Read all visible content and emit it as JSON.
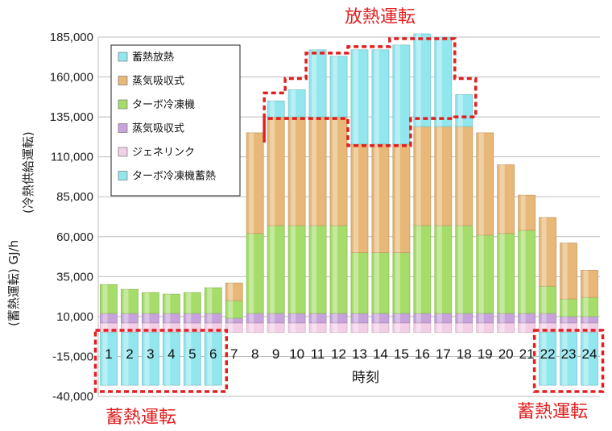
{
  "chart_data": {
    "type": "bar",
    "stacked": true,
    "title": "",
    "xlabel": "時刻",
    "ylabel_left": "(蓄熱運転) GJ/h",
    "ylabel_right": "(冷熱供給運転)",
    "ylim": [
      -40000,
      185000
    ],
    "yticks": [
      "185,000",
      "160,000",
      "135,000",
      "110,000",
      "85,000",
      "60,000",
      "35,000",
      "10,000",
      "-15,000",
      "-40,000"
    ],
    "ytick_values": [
      185000,
      160000,
      135000,
      110000,
      85000,
      60000,
      35000,
      10000,
      -15000,
      -40000
    ],
    "categories": [
      "1",
      "2",
      "3",
      "4",
      "5",
      "6",
      "7",
      "8",
      "9",
      "10",
      "11",
      "12",
      "13",
      "14",
      "15",
      "16",
      "17",
      "18",
      "19",
      "20",
      "21",
      "22",
      "23",
      "24"
    ],
    "legend_order": [
      "蓄熱放熱",
      "蒸気吸収式",
      "ターボ冷凍機",
      "蒸気吸収式",
      "ジェネリンク",
      "ターボ冷凍機蓄熱"
    ],
    "series": [
      {
        "name": "ジェネリンク",
        "color": "#f3cfe6",
        "values": [
          6000,
          6000,
          6000,
          6000,
          6000,
          6000,
          6000,
          6000,
          6000,
          6000,
          6000,
          6000,
          6000,
          6000,
          6000,
          6000,
          6000,
          6000,
          6000,
          6000,
          6000,
          6000,
          6000,
          6000
        ]
      },
      {
        "name": "蒸気吸収式",
        "color": "#c7a2db",
        "values": [
          6000,
          6000,
          6000,
          6000,
          6000,
          6000,
          3000,
          6000,
          6000,
          6000,
          6000,
          6000,
          6000,
          6000,
          6000,
          6000,
          6000,
          6000,
          6000,
          6000,
          6000,
          6000,
          4000,
          4000
        ]
      },
      {
        "name": "ターボ冷凍機",
        "color": "#a6dd6a",
        "values": [
          18000,
          15000,
          13000,
          12000,
          13000,
          16000,
          11000,
          50000,
          55000,
          55000,
          55000,
          55000,
          38000,
          38000,
          38000,
          55000,
          55000,
          55000,
          49000,
          50000,
          52000,
          17000,
          11000,
          12000
        ]
      },
      {
        "name": "蒸気吸収式",
        "color": "#e7b877",
        "values": [
          0,
          0,
          0,
          0,
          0,
          0,
          11000,
          63000,
          68000,
          68000,
          68000,
          68000,
          68000,
          68000,
          68000,
          62000,
          62000,
          62000,
          64000,
          43000,
          22000,
          43000,
          35000,
          17000
        ]
      },
      {
        "name": "蓄熱放熱",
        "color": "#92e6ee",
        "values": [
          0,
          0,
          0,
          0,
          0,
          0,
          0,
          0,
          10000,
          17000,
          42000,
          38000,
          59000,
          59000,
          62000,
          58000,
          56000,
          20000,
          0,
          0,
          0,
          0,
          0,
          0
        ]
      },
      {
        "name": "ターボ冷凍機蓄熱",
        "color": "#92e6ee",
        "values": [
          -33000,
          -33000,
          -33000,
          -33000,
          -33000,
          -33000,
          0,
          0,
          0,
          0,
          0,
          0,
          0,
          0,
          0,
          0,
          0,
          0,
          0,
          0,
          0,
          -33000,
          -33000,
          -33000
        ]
      }
    ],
    "annotations": {
      "release": "放熱運転",
      "storage_left": "蓄熱運転",
      "storage_right": "蓄熱運転"
    },
    "grid": true,
    "legend_placement": "top-left"
  }
}
